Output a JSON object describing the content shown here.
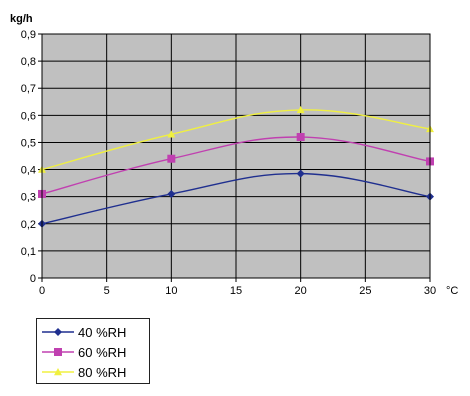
{
  "chart_data": {
    "type": "line",
    "xlabel": "°C",
    "ylabel": "kg/h",
    "x": [
      0,
      10,
      20,
      30
    ],
    "xticks": [
      0,
      5,
      10,
      15,
      20,
      25,
      30
    ],
    "xtick_labels": [
      "0",
      "5",
      "10",
      "15",
      "20",
      "25",
      "30"
    ],
    "xlim": [
      0,
      30
    ],
    "ylim": [
      0,
      0.9
    ],
    "yticks": [
      0,
      0.1,
      0.2,
      0.3,
      0.4,
      0.5,
      0.6,
      0.7,
      0.8,
      0.9
    ],
    "ytick_labels": [
      "0",
      "0,1",
      "0,2",
      "0,3",
      "0,4",
      "0,5",
      "0,6",
      "0,7",
      "0,8",
      "0,9"
    ],
    "grid": true,
    "plot_background": "#c0c0c0",
    "legend_position": "bottom-left",
    "series": [
      {
        "name": "40 %RH",
        "values": [
          0.2,
          0.31,
          0.385,
          0.3
        ],
        "color": "#1f2f8f",
        "marker": "diamond"
      },
      {
        "name": "60 %RH",
        "values": [
          0.31,
          0.44,
          0.52,
          0.43
        ],
        "color": "#c040b0",
        "marker": "square"
      },
      {
        "name": "80 %RH",
        "values": [
          0.4,
          0.53,
          0.62,
          0.55
        ],
        "color": "#f0f040",
        "marker": "triangle"
      }
    ]
  }
}
